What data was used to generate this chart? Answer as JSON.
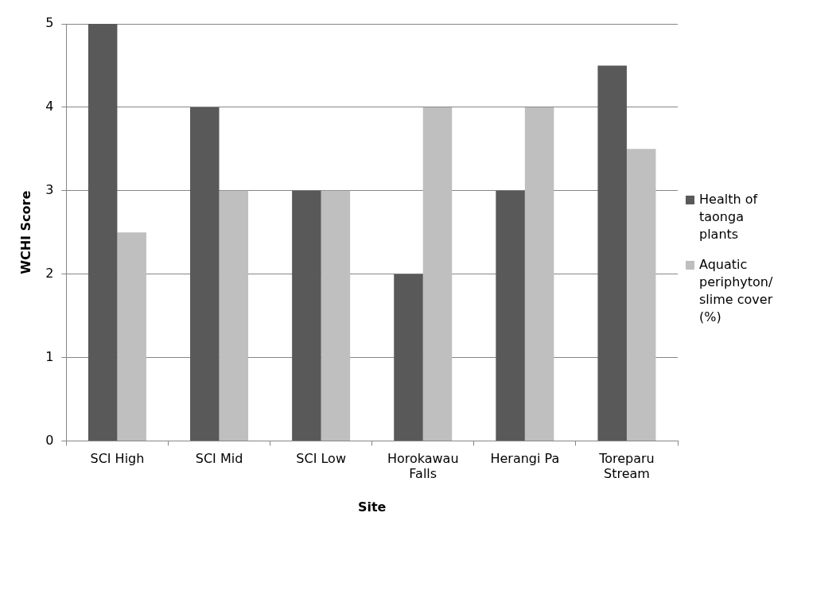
{
  "chart_data": {
    "type": "bar",
    "xlabel": "Site",
    "ylabel": "WCHI Score",
    "categories": [
      "SCI High",
      "SCI Mid",
      "SCI Low",
      "Horokawau Falls",
      "Herangi Pa",
      "Toreparu Stream"
    ],
    "series": [
      {
        "name": "Health of taonga plants",
        "color": "#595959",
        "values": [
          5,
          4,
          3,
          2,
          3,
          4.5
        ]
      },
      {
        "name": "Aquatic periphyton/slime cover (%)",
        "color": "#bfbfbf",
        "values": [
          2.5,
          3,
          3,
          4,
          4,
          3.5
        ]
      }
    ],
    "ylim": [
      0,
      5
    ],
    "yticks": [
      0,
      1,
      2,
      3,
      4,
      5
    ],
    "grid": "y",
    "legend": "right"
  }
}
